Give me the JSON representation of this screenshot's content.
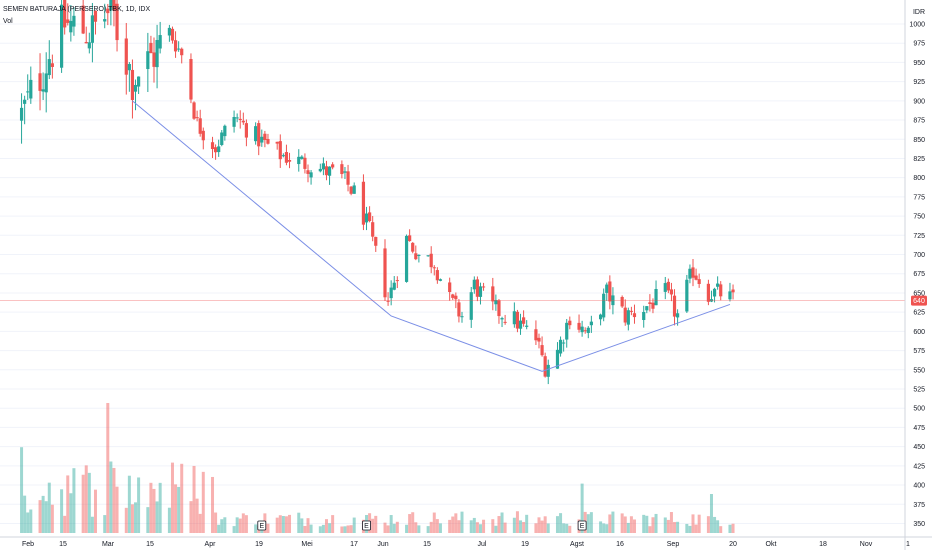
{
  "header": {
    "symbol_line": "SEMEN BATURAJA (PERSERO) TBK, 1D, IDX",
    "volume_label": "Vol"
  },
  "currency_label": "IDR",
  "last_price_label": "640",
  "colors": {
    "up": "#26a69a",
    "down": "#ef5350",
    "trendline": "#7b8fe6",
    "last_price_line": "#ef5350",
    "grid": "#f0f3fa",
    "axis_text": "#131722"
  },
  "event_marker_label": "E",
  "chart_data": {
    "type": "candlestick",
    "title": "SEMEN BATURAJA (PERSERO) TBK, 1D, IDX",
    "y_axis": {
      "position": "right",
      "unit": "IDR",
      "range": [
        330,
        1040
      ],
      "ticks": [
        1000,
        975,
        950,
        925,
        900,
        875,
        850,
        825,
        800,
        775,
        750,
        725,
        700,
        675,
        650,
        625,
        600,
        575,
        550,
        525,
        500,
        475,
        450,
        425,
        400,
        375,
        350
      ]
    },
    "x_axis": {
      "tick_labels": [
        "Feb",
        "15",
        "Mar",
        "15",
        "Apr",
        "19",
        "Mei",
        "17",
        "Jun",
        "15",
        "Jul",
        "19",
        "Agst",
        "16",
        "Sep",
        "20",
        "Okt",
        "18",
        "Nov",
        "1"
      ]
    },
    "last_price": 640,
    "trendline_points": [
      {
        "date": "2022-03-09",
        "price": 900
      },
      {
        "date": "2022-06-01",
        "price": 620
      },
      {
        "date": "2022-07-20",
        "price": 548
      },
      {
        "date": "2022-09-19",
        "price": 635
      }
    ],
    "event_markers": [
      "2022-04-20",
      "2022-05-24",
      "2022-08-02"
    ],
    "anchors": [
      [
        "2022-02-01",
        880
      ],
      [
        "2022-02-10",
        960
      ],
      [
        "2022-02-15",
        1000
      ],
      [
        "2022-02-24",
        990
      ],
      [
        "2022-03-02",
        1020
      ],
      [
        "2022-03-09",
        930
      ],
      [
        "2022-03-14",
        950
      ],
      [
        "2022-03-21",
        990
      ],
      [
        "2022-03-25",
        960
      ],
      [
        "2022-03-30",
        870
      ],
      [
        "2022-04-05",
        840
      ],
      [
        "2022-04-11",
        880
      ],
      [
        "2022-04-19",
        850
      ],
      [
        "2022-04-26",
        830
      ],
      [
        "2022-05-10",
        810
      ],
      [
        "2022-05-16",
        800
      ],
      [
        "2022-05-20",
        780
      ],
      [
        "2022-05-25",
        730
      ],
      [
        "2022-05-31",
        640
      ],
      [
        "2022-06-06",
        720
      ],
      [
        "2022-06-10",
        700
      ],
      [
        "2022-06-15",
        690
      ],
      [
        "2022-06-20",
        640
      ],
      [
        "2022-06-24",
        620
      ],
      [
        "2022-06-28",
        660
      ],
      [
        "2022-07-04",
        630
      ],
      [
        "2022-07-11",
        615
      ],
      [
        "2022-07-18",
        590
      ],
      [
        "2022-07-21",
        555
      ],
      [
        "2022-07-25",
        575
      ],
      [
        "2022-07-29",
        620
      ],
      [
        "2022-08-04",
        595
      ],
      [
        "2022-08-10",
        650
      ],
      [
        "2022-08-16",
        620
      ],
      [
        "2022-08-22",
        630
      ],
      [
        "2022-08-29",
        650
      ],
      [
        "2022-09-02",
        620
      ],
      [
        "2022-09-07",
        680
      ],
      [
        "2022-09-12",
        650
      ],
      [
        "2022-09-16",
        650
      ],
      [
        "2022-09-20",
        640
      ]
    ]
  }
}
